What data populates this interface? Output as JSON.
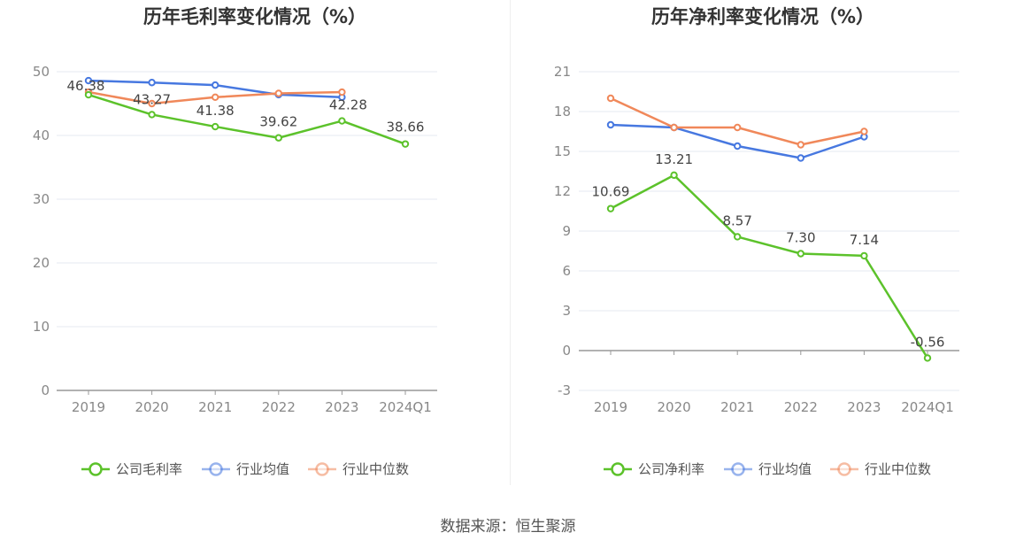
{
  "source_text": "数据来源：恒生聚源",
  "chart_data": [
    {
      "type": "line",
      "title": "历年毛利率变化情况（%）",
      "categories": [
        "2019",
        "2020",
        "2021",
        "2022",
        "2023",
        "2024Q1"
      ],
      "ylim": [
        0,
        50
      ],
      "yticks": [
        0,
        10,
        20,
        30,
        40,
        50
      ],
      "series": [
        {
          "name": "公司毛利率",
          "color": "#5cc22b",
          "values": [
            46.38,
            43.27,
            41.38,
            39.62,
            42.28,
            38.66
          ],
          "labels": [
            "46.38",
            "43.27",
            "41.38",
            "39.62",
            "42.28",
            "38.66"
          ]
        },
        {
          "name": "行业均值",
          "color": "#4778e0",
          "values": [
            48.6,
            48.3,
            47.9,
            46.4,
            46.0,
            null
          ]
        },
        {
          "name": "行业中位数",
          "color": "#f0885a",
          "values": [
            46.8,
            45.0,
            46.0,
            46.6,
            46.8,
            null
          ]
        }
      ]
    },
    {
      "type": "line",
      "title": "历年净利率变化情况（%）",
      "categories": [
        "2019",
        "2020",
        "2021",
        "2022",
        "2023",
        "2024Q1"
      ],
      "ylim": [
        -3,
        21
      ],
      "yticks": [
        -3,
        0,
        3,
        6,
        9,
        12,
        15,
        18,
        21
      ],
      "series": [
        {
          "name": "公司净利率",
          "color": "#5cc22b",
          "values": [
            10.69,
            13.21,
            8.57,
            7.3,
            7.14,
            -0.56
          ],
          "labels": [
            "10.69",
            "13.21",
            "8.57",
            "7.30",
            "7.14",
            "-0.56"
          ]
        },
        {
          "name": "行业均值",
          "color": "#4778e0",
          "values": [
            17.0,
            16.8,
            15.4,
            14.5,
            16.1,
            null
          ]
        },
        {
          "name": "行业中位数",
          "color": "#f0885a",
          "values": [
            19.0,
            16.8,
            16.8,
            15.5,
            16.5,
            null
          ]
        }
      ]
    }
  ]
}
